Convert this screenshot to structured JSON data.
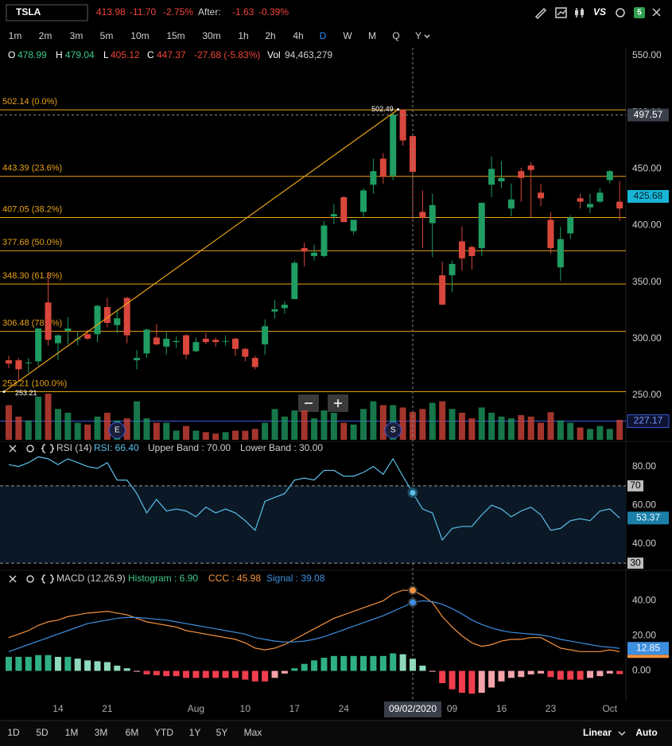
{
  "toolbar": {
    "symbol": "TSLA",
    "last": "413.98",
    "change": "-11.70",
    "change_pct": "-2.75%",
    "after_label": "After:",
    "after_change": "-1.63",
    "after_change_pct": "-0.39%",
    "compare": "VS",
    "badge": "5"
  },
  "intervals": [
    {
      "label": "1m"
    },
    {
      "label": "2m"
    },
    {
      "label": "3m"
    },
    {
      "label": "5m"
    },
    {
      "label": "10m"
    },
    {
      "label": "15m"
    },
    {
      "label": "30m"
    },
    {
      "label": "1h"
    },
    {
      "label": "2h"
    },
    {
      "label": "4h"
    },
    {
      "label": "D",
      "active": true
    },
    {
      "label": "W"
    },
    {
      "label": "M"
    },
    {
      "label": "Q"
    },
    {
      "label": "Y"
    }
  ],
  "legend": {
    "open_label": "O",
    "open": "478.99",
    "high_label": "H",
    "high": "479.04",
    "low_label": "L",
    "low": "405.12",
    "close_label": "C",
    "close": "447.37",
    "change": "-27.68 (-5.83%)",
    "volume_label": "Vol",
    "volume": "94,463,279"
  },
  "range_buttons": [
    "1D",
    "5D",
    "1M",
    "3M",
    "6M",
    "YTD",
    "1Y",
    "5Y",
    "Max"
  ],
  "scale_mode": "Linear",
  "auto_scale": "Auto",
  "chart_data": [
    {
      "type": "candlestick",
      "categories": [
        null,
        null,
        null,
        null,
        null,
        "14",
        null,
        null,
        null,
        null,
        "21",
        null,
        null,
        null,
        null,
        null,
        null,
        null,
        null,
        "Aug",
        null,
        null,
        null,
        null,
        "10",
        null,
        null,
        null,
        null,
        "17",
        null,
        null,
        null,
        null,
        "24",
        null,
        null,
        null,
        null,
        null,
        null,
        "09/02/2020",
        null,
        null,
        null,
        "09",
        null,
        null,
        null,
        null,
        "16",
        null,
        null,
        null,
        null,
        "23",
        null,
        null,
        null,
        null,
        null,
        "Oct",
        null
      ],
      "open": [
        281,
        281,
        279,
        280,
        332,
        296,
        307,
        300,
        304,
        304,
        328,
        312,
        336,
        281,
        287,
        301,
        293,
        297,
        303,
        289,
        300,
        299,
        298,
        300,
        291,
        283,
        295,
        324,
        327,
        335,
        380,
        373,
        373,
        408,
        425,
        395,
        412,
        436,
        459,
        444,
        502.14,
        478.99,
        412,
        402,
        356,
        356,
        386,
        381,
        380,
        436,
        439,
        415,
        448,
        453,
        429,
        405,
        363,
        393,
        424,
        416,
        421,
        440,
        421
      ],
      "high": [
        285,
        283,
        283,
        309,
        359,
        304,
        319,
        306,
        308,
        330,
        336,
        326,
        337,
        290,
        309,
        313,
        306,
        302,
        304,
        301,
        305,
        301,
        303,
        301,
        292,
        285,
        317,
        334,
        333,
        369,
        385,
        383,
        404,
        419,
        426,
        405,
        433,
        459,
        464,
        500,
        502.49,
        479.04,
        431,
        428,
        368,
        369,
        399,
        382,
        420,
        461,
        457,
        437,
        451,
        456,
        437,
        412,
        399,
        409,
        428,
        428,
        433,
        449,
        439
      ],
      "low": [
        274,
        262,
        270,
        276,
        294,
        281,
        295,
        294,
        299,
        297,
        310,
        305,
        296,
        273,
        283,
        294,
        286,
        292,
        282,
        288,
        295,
        293,
        294,
        285,
        280,
        273,
        286,
        318,
        322,
        335,
        364,
        369,
        372,
        401,
        403,
        392,
        407,
        428,
        437,
        440,
        470.51,
        405.12,
        380,
        372,
        330,
        341,
        360,
        361,
        373,
        425,
        433,
        408,
        421,
        407,
        417,
        375,
        351,
        388,
        415,
        411,
        420,
        437,
        404
      ],
      "close": [
        278,
        273,
        279,
        309,
        299,
        303,
        309,
        300,
        300,
        329,
        314,
        318,
        303,
        283,
        308,
        295,
        300,
        298,
        286,
        297,
        297,
        297,
        298,
        291,
        284,
        275,
        311,
        326,
        330,
        367,
        377,
        376,
        400,
        410,
        403,
        405,
        431,
        448,
        443,
        498,
        475.05,
        447.37,
        407,
        418,
        330,
        366,
        371,
        373,
        420,
        450,
        442,
        423,
        442,
        449,
        424,
        380,
        388,
        407,
        421,
        419,
        429,
        448,
        415
      ],
      "volume": [
        118000000,
        79000000,
        66000000,
        147000000,
        157000000,
        105000000,
        92000000,
        58000000,
        52000000,
        79000000,
        92000000,
        66000000,
        73000000,
        131000000,
        73000000,
        58000000,
        58000000,
        31000000,
        47000000,
        31000000,
        26000000,
        21000000,
        26000000,
        31000000,
        31000000,
        37000000,
        58000000,
        105000000,
        79000000,
        100000000,
        100000000,
        73000000,
        100000000,
        92000000,
        58000000,
        52000000,
        105000000,
        131000000,
        118000000,
        118000000,
        110000000,
        94463279,
        105000000,
        126000000,
        131000000,
        105000000,
        92000000,
        73000000,
        110000000,
        92000000,
        79000000,
        73000000,
        84000000,
        79000000,
        58000000,
        94000000,
        66000000,
        58000000,
        42000000,
        37000000,
        47000000,
        37000000,
        68000000
      ],
      "up_color": "#1f9d63",
      "down_color": "#d9473c",
      "ylim": [
        210,
        557
      ],
      "yticks": [
        {
          "value": 250,
          "label": "250.00"
        },
        {
          "value": 300,
          "label": "300.00"
        },
        {
          "value": 350,
          "label": "350.00"
        },
        {
          "value": 400,
          "label": "400.00"
        },
        {
          "value": 450,
          "label": "450.00"
        },
        {
          "value": 500,
          "label": "500.00"
        },
        {
          "value": 550,
          "label": "550.00"
        }
      ],
      "fib_color": "#e8a317",
      "fib_levels": [
        {
          "value": 502.14,
          "label": "502.14 (0.0%)"
        },
        {
          "value": 443.39,
          "label": "443.39 (23.6%)"
        },
        {
          "value": 407.05,
          "label": "407.05 (38.2%)"
        },
        {
          "value": 377.68,
          "label": "377.68 (50.0%)"
        },
        {
          "value": 348.3,
          "label": "348.30 (61.8%)"
        },
        {
          "value": 306.48,
          "label": "306.48 (78.6%)"
        },
        {
          "value": 253.21,
          "label": "253.21 (100.0%)"
        }
      ],
      "trend_line": {
        "x": [
          0,
          40
        ],
        "values": [
          253.21,
          502.49
        ]
      },
      "events": [
        {
          "x": 11,
          "label": "E"
        },
        {
          "x": 39,
          "label": "S"
        }
      ],
      "crosshair": {
        "x": 41,
        "y": 497.57
      },
      "last_price": 425.68,
      "price_line": {
        "value": 227.17,
        "color": "#3b5bdb"
      }
    },
    {
      "type": "line",
      "title": "RSI (14)",
      "legend": [
        "RSI: 66.40",
        "Upper Band : 70.00",
        "Lower Band : 30.00"
      ],
      "ylim": [
        28,
        86
      ],
      "yticks": [
        {
          "value": 80,
          "label": "80.00"
        },
        {
          "value": 60,
          "label": "60.00"
        },
        {
          "value": 40,
          "label": "40.00"
        }
      ],
      "bands": [
        70,
        30
      ],
      "band_fill": "#0b1826",
      "series": [
        {
          "color": "#5bc0eb",
          "values": [
            81,
            80,
            82,
            85,
            84,
            81,
            84,
            82,
            80,
            79,
            82,
            73,
            73,
            66,
            56,
            63,
            57,
            58,
            57,
            54,
            59,
            56,
            58,
            56,
            52,
            47,
            62,
            64,
            66,
            73,
            74,
            73,
            78,
            78,
            75,
            75,
            77,
            80,
            76,
            84,
            75,
            66.4,
            58,
            56,
            42,
            48,
            49,
            49,
            55,
            60,
            58,
            54,
            57,
            59,
            55,
            47,
            48,
            52,
            53,
            52,
            57,
            58,
            53.37
          ]
        }
      ]
    },
    {
      "type": "macd",
      "title": "MACD (12,26,9)",
      "legend": [
        "Histogram : 6.90",
        "CCC : 45.98",
        "Signal : 39.08"
      ],
      "ylim": [
        -17,
        47
      ],
      "yticks": [
        {
          "value": 40,
          "label": "40.00"
        },
        {
          "value": 20,
          "label": "20.00"
        },
        {
          "value": 0,
          "label": "0.00"
        }
      ],
      "series": [
        {
          "color": "#f5923e",
          "values": [
            19,
            21,
            23,
            26,
            28,
            29,
            31,
            32,
            33,
            33.5,
            34,
            33,
            32,
            30,
            28,
            27,
            26,
            25,
            23,
            22,
            21,
            20,
            19,
            18,
            16,
            13,
            12,
            13,
            15,
            18,
            21,
            24,
            27,
            30,
            32,
            34,
            36,
            38,
            40,
            44,
            46,
            45.98,
            43,
            39,
            31,
            25,
            20,
            16,
            14,
            15,
            17,
            18,
            18,
            19,
            19,
            16,
            13,
            12,
            11,
            11,
            11,
            12,
            11
          ]
        },
        {
          "color": "#3d8fe0",
          "values": [
            11,
            13,
            15,
            17,
            19,
            21,
            23,
            25,
            27,
            28,
            29,
            30,
            30.5,
            30.5,
            30,
            29.5,
            29,
            28,
            27,
            26,
            25,
            24,
            23,
            22,
            21,
            19,
            18,
            17,
            16.5,
            16.5,
            17,
            18,
            19.5,
            21.5,
            23.5,
            25.5,
            27.5,
            29.5,
            31.5,
            34,
            36.5,
            39.08,
            40,
            39.5,
            38,
            35.5,
            32.5,
            29,
            26.5,
            24.5,
            23,
            22,
            21.5,
            21,
            20.5,
            19.5,
            18,
            17,
            16,
            15,
            14,
            13.5,
            12.85
          ]
        }
      ],
      "histogram": {
        "values": [
          8,
          8,
          8,
          9,
          9,
          8,
          8,
          7,
          6,
          5.5,
          5,
          3,
          1.5,
          -0.5,
          -2,
          -2.5,
          -3,
          -3,
          -4,
          -4,
          -4,
          -4,
          -4,
          -4,
          -5,
          -6,
          -6,
          -4,
          -1.5,
          1.5,
          4,
          6,
          7.5,
          8.5,
          8.5,
          8.5,
          8.5,
          8.5,
          8.5,
          10,
          9.5,
          6.9,
          3,
          -0.5,
          -7,
          -10.5,
          -12.5,
          -13,
          -12.5,
          -9.5,
          -6,
          -4,
          -3.5,
          -2,
          -1.5,
          -3.5,
          -5,
          -5,
          -5,
          -4,
          -3,
          -1.5,
          -1.85
        ],
        "pos_color": "#2fb083",
        "pos_light_color": "#8fd9bc",
        "neg_color": "#f03e4e",
        "neg_light_color": "#f5a3ab"
      }
    }
  ]
}
